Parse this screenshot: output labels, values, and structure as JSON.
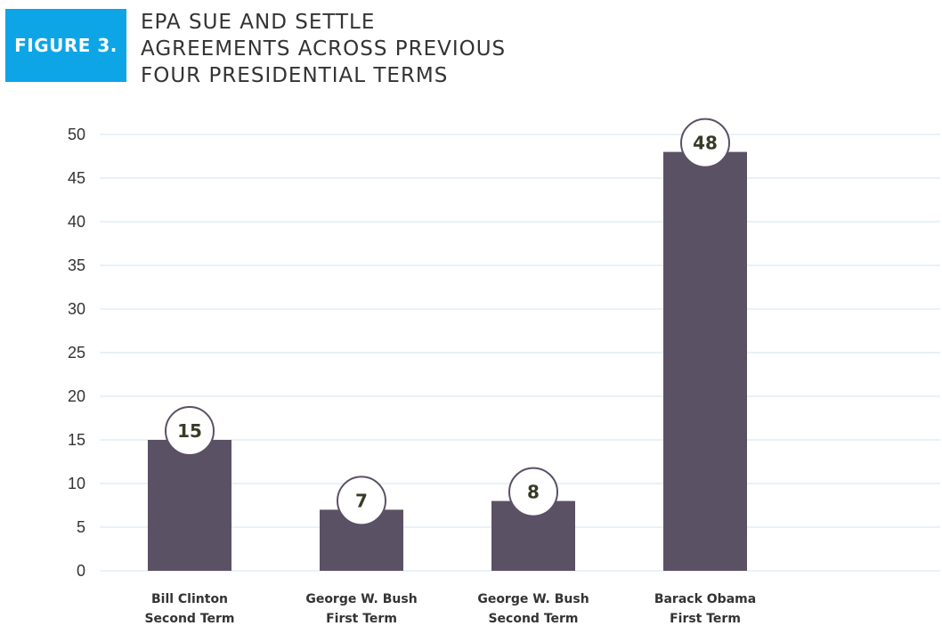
{
  "figure": {
    "badge": "FIGURE 3.",
    "title_lines": [
      "EPA SUE AND SETTLE",
      "AGREEMENTS ACROSS PREVIOUS",
      "FOUR PRESIDENTIAL TERMS"
    ]
  },
  "colors": {
    "badge": "#0ea5e6",
    "bar": "#5b5165",
    "grid": "#cfe5f2",
    "circle_stroke": "#5b5165"
  },
  "chart_data": {
    "type": "bar",
    "title": "EPA SUE AND SETTLE AGREEMENTS ACROSS PREVIOUS FOUR PRESIDENTIAL TERMS",
    "xlabel": "",
    "ylabel": "",
    "categories": [
      [
        "Bill Clinton",
        "Second Term"
      ],
      [
        "George W. Bush",
        "First Term"
      ],
      [
        "George W. Bush",
        "Second Term"
      ],
      [
        "Barack Obama",
        "First Term"
      ]
    ],
    "values": [
      15,
      7,
      8,
      48
    ],
    "ylim": [
      0,
      50
    ],
    "yticks": [
      0,
      5,
      10,
      15,
      20,
      25,
      30,
      35,
      40,
      45,
      50
    ],
    "grid": true,
    "legend": "none"
  }
}
